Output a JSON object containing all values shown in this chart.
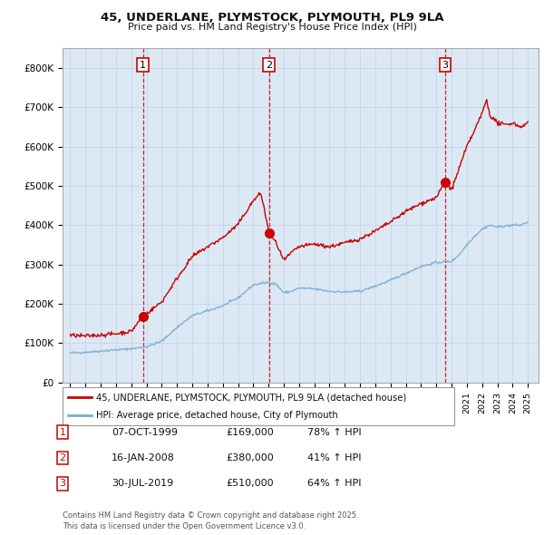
{
  "title1": "45, UNDERLANE, PLYMSTOCK, PLYMOUTH, PL9 9LA",
  "title2": "Price paid vs. HM Land Registry's House Price Index (HPI)",
  "legend_line1": "45, UNDERLANE, PLYMSTOCK, PLYMOUTH, PL9 9LA (detached house)",
  "legend_line2": "HPI: Average price, detached house, City of Plymouth",
  "red_color": "#cc0000",
  "blue_color": "#7aadcf",
  "plot_bg_color": "#dce9f5",
  "sale_dates": [
    1999.77,
    2008.04,
    2019.58
  ],
  "sale_prices": [
    169000,
    380000,
    510000
  ],
  "sale_labels": [
    "1",
    "2",
    "3"
  ],
  "sale_annotations": [
    [
      "1",
      "07-OCT-1999",
      "£169,000",
      "78% ↑ HPI"
    ],
    [
      "2",
      "16-JAN-2008",
      "£380,000",
      "41% ↑ HPI"
    ],
    [
      "3",
      "30-JUL-2019",
      "£510,000",
      "64% ↑ HPI"
    ]
  ],
  "footnote": "Contains HM Land Registry data © Crown copyright and database right 2025.\nThis data is licensed under the Open Government Licence v3.0.",
  "ylim": [
    0,
    850000
  ],
  "yticks": [
    0,
    100000,
    200000,
    300000,
    400000,
    500000,
    600000,
    700000,
    800000
  ],
  "ytick_labels": [
    "£0",
    "£100K",
    "£200K",
    "£300K",
    "£400K",
    "£500K",
    "£600K",
    "£700K",
    "£800K"
  ],
  "xlim_start": 1994.5,
  "xlim_end": 2025.7,
  "background_color": "#ffffff",
  "grid_color": "#c8d8e8"
}
